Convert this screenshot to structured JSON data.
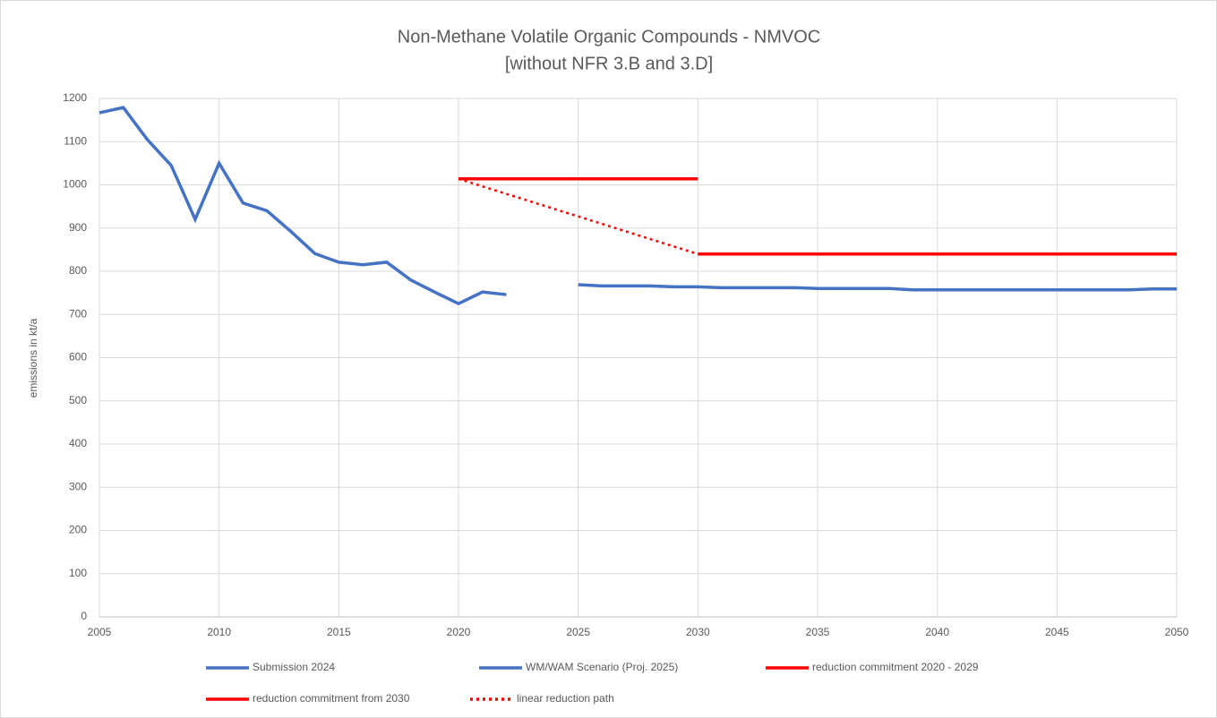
{
  "chart_data": {
    "type": "line",
    "title": "Non-Methane Volatile Organic Compounds - NMVOC",
    "subtitle": "[without NFR 3.B and 3.D]",
    "y_label": "emissions in kt/a",
    "xlim": [
      2005,
      2050
    ],
    "xticks": [
      2005,
      2010,
      2015,
      2020,
      2025,
      2030,
      2035,
      2040,
      2045,
      2050
    ],
    "ylim": [
      0,
      1200
    ],
    "yticks": [
      0,
      100,
      200,
      300,
      400,
      500,
      600,
      700,
      800,
      900,
      1000,
      1100,
      1200
    ],
    "grid": true,
    "legend": "bottom",
    "series": [
      {
        "name": "Submission 2024",
        "color": "#4472c4",
        "dash": "solid",
        "x": [
          2005,
          2006,
          2007,
          2008,
          2009,
          2010,
          2011,
          2012,
          2013,
          2014,
          2015,
          2016,
          2017,
          2018,
          2019,
          2020,
          2021,
          2022
        ],
        "values": [
          1167,
          1179,
          1105,
          1045,
          920,
          1050,
          958,
          940,
          892,
          841,
          821,
          815,
          821,
          780,
          752,
          725,
          752,
          746
        ]
      },
      {
        "name": "WM/WAM Scenario (Proj. 2025)",
        "color": "#4472c4",
        "dash": "solid",
        "x": [
          2025,
          2026,
          2027,
          2028,
          2029,
          2030,
          2031,
          2032,
          2033,
          2034,
          2035,
          2036,
          2037,
          2038,
          2039,
          2040,
          2041,
          2042,
          2043,
          2044,
          2045,
          2046,
          2047,
          2048,
          2049,
          2050
        ],
        "values": [
          769,
          766,
          766,
          766,
          764,
          764,
          762,
          762,
          762,
          762,
          760,
          760,
          760,
          760,
          757,
          757,
          757,
          757,
          757,
          757,
          757,
          757,
          757,
          757,
          759,
          759
        ]
      },
      {
        "name": "reduction commitment 2020 - 2029",
        "color": "#ff0000",
        "dash": "solid",
        "x": [
          2020,
          2030
        ],
        "values": [
          1014,
          1014
        ]
      },
      {
        "name": "reduction commitment from 2030",
        "color": "#ff0000",
        "dash": "solid",
        "x": [
          2030,
          2050
        ],
        "values": [
          840,
          840
        ]
      },
      {
        "name": "linear reduction path",
        "color": "#ff0000",
        "dash": "dotted",
        "x": [
          2020,
          2030
        ],
        "values": [
          1014,
          840
        ]
      }
    ]
  }
}
